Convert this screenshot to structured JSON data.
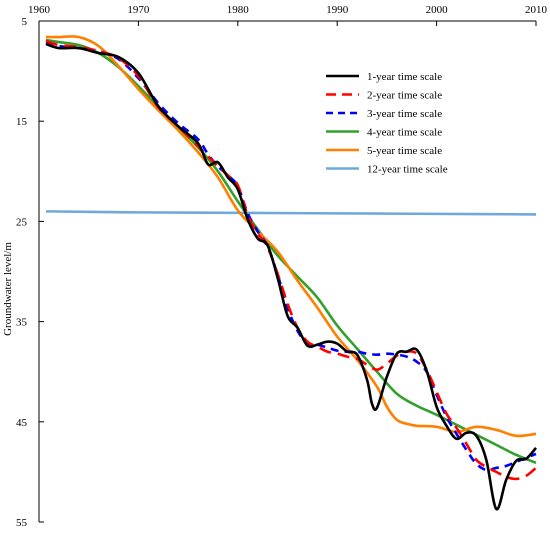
{
  "chart_data": {
    "type": "line",
    "title": "",
    "xlabel": "",
    "ylabel": "Groundwater level/m",
    "xlim": [
      1960,
      2010
    ],
    "ylim": [
      5,
      55
    ],
    "y_inverted": true,
    "x_ticks": [
      1960,
      1970,
      1980,
      1990,
      2000,
      2010
    ],
    "y_ticks": [
      5,
      15,
      25,
      35,
      45,
      55
    ],
    "x_axis_position": "top",
    "grid": false,
    "legend_position": "top-right",
    "series": [
      {
        "name": "1-year time scale",
        "color": "#000000",
        "dash": "solid",
        "x": [
          1960.7,
          1962,
          1964,
          1966,
          1968,
          1970,
          1972,
          1974,
          1976,
          1977,
          1978,
          1979,
          1980,
          1981,
          1982,
          1983,
          1984,
          1985,
          1986,
          1987,
          1988,
          1989,
          1990,
          1991,
          1992,
          1993,
          1993.5,
          1994,
          1995,
          1996,
          1997,
          1998,
          1999,
          2000,
          2001,
          2002,
          2003,
          2004,
          2005,
          2006,
          2007,
          2008,
          2009,
          2010
        ],
        "y": [
          7.3,
          7.7,
          7.7,
          8.2,
          8.6,
          10.2,
          13.5,
          15.5,
          17.2,
          19.3,
          19.1,
          20.6,
          21.8,
          24.8,
          26.7,
          27.4,
          30.6,
          34.4,
          35.6,
          37.4,
          37.3,
          37.0,
          37.2,
          38.0,
          38.3,
          40.8,
          43.2,
          43.6,
          40.5,
          38.2,
          38.0,
          37.8,
          39.9,
          43.5,
          45.4,
          46.7,
          46.1,
          46.4,
          48.8,
          53.7,
          50.8,
          48.9,
          48.7,
          47.6
        ]
      },
      {
        "name": "2-year time scale",
        "color": "#ff0000",
        "dash": "long-dash",
        "x": [
          1960.7,
          1962,
          1964,
          1966,
          1968,
          1970,
          1972,
          1974,
          1976,
          1977,
          1978,
          1979,
          1980,
          1981,
          1982,
          1983,
          1984,
          1985,
          1986,
          1987,
          1988,
          1989,
          1990,
          1991,
          1992,
          1993,
          1994,
          1995,
          1996,
          1997,
          1998,
          1999,
          2000,
          2001,
          2002,
          2003,
          2004,
          2005,
          2006,
          2007,
          2008,
          2009,
          2010
        ],
        "y": [
          7.0,
          7.4,
          7.6,
          8.0,
          8.7,
          10.5,
          13.6,
          15.5,
          17.5,
          18.5,
          19.5,
          20.4,
          21.4,
          24.4,
          26.2,
          27.6,
          30.2,
          33.2,
          35.6,
          37.0,
          37.5,
          38.0,
          38.2,
          38.5,
          38.7,
          39.3,
          39.8,
          39.2,
          38.4,
          38.0,
          38.2,
          39.8,
          42.0,
          44.2,
          45.6,
          47.2,
          48.8,
          49.5,
          50.0,
          50.5,
          50.7,
          50.4,
          49.6
        ]
      },
      {
        "name": "3-year time scale",
        "color": "#0000ff",
        "dash": "short-dash",
        "x": [
          1960.7,
          1962,
          1964,
          1966,
          1968,
          1970,
          1972,
          1974,
          1976,
          1977,
          1978,
          1979,
          1980,
          1981,
          1982,
          1983,
          1984,
          1985,
          1986,
          1987,
          1988,
          1989,
          1990,
          1991,
          1992,
          1993,
          1994,
          1995,
          1996,
          1997,
          1998,
          1999,
          2000,
          2001,
          2002,
          2003,
          2004,
          2005,
          2006,
          2007,
          2008,
          2009,
          2010
        ],
        "y": [
          7.2,
          7.5,
          7.7,
          8.0,
          8.8,
          10.7,
          13.2,
          15.2,
          16.8,
          18.3,
          19.5,
          20.4,
          21.5,
          24.2,
          26.0,
          27.5,
          30.3,
          33.6,
          35.9,
          37.2,
          37.3,
          37.6,
          37.9,
          38.0,
          38.0,
          38.2,
          38.3,
          38.2,
          38.3,
          38.5,
          39.0,
          40.0,
          42.3,
          44.5,
          46.2,
          47.8,
          49.2,
          49.8,
          49.6,
          49.4,
          49.0,
          48.6,
          48.2
        ]
      },
      {
        "name": "4-year time scale",
        "color": "#33a02c",
        "dash": "solid",
        "x": [
          1960.7,
          1962,
          1964,
          1966,
          1968,
          1970,
          1972,
          1974,
          1976,
          1978,
          1980,
          1982,
          1984,
          1986,
          1988,
          1990,
          1992,
          1994,
          1996,
          1998,
          2000,
          2002,
          2004,
          2006,
          2008,
          2010
        ],
        "y": [
          6.9,
          7.1,
          7.4,
          8.2,
          9.6,
          11.5,
          13.6,
          15.6,
          17.6,
          20.0,
          23.0,
          25.8,
          28.4,
          30.5,
          32.6,
          35.4,
          37.7,
          40.0,
          42.2,
          43.4,
          44.3,
          45.3,
          46.3,
          47.3,
          48.3,
          49.1
        ]
      },
      {
        "name": "5-year time scale",
        "color": "#ff7f00",
        "dash": "solid",
        "x": [
          1960.7,
          1962,
          1964,
          1966,
          1968,
          1970,
          1972,
          1974,
          1976,
          1978,
          1980,
          1982,
          1984,
          1986,
          1988,
          1990,
          1992,
          1994,
          1995,
          1996,
          1997,
          1998,
          2000,
          2002,
          2004,
          2006,
          2008,
          2010
        ],
        "y": [
          6.6,
          6.6,
          6.6,
          7.5,
          9.5,
          11.8,
          13.9,
          15.9,
          18.1,
          20.6,
          23.9,
          26.0,
          28.0,
          30.9,
          33.6,
          36.5,
          38.8,
          41.5,
          43.5,
          44.8,
          45.2,
          45.4,
          45.5,
          46.0,
          45.5,
          45.8,
          46.4,
          46.2
        ]
      },
      {
        "name": "12-year time scale",
        "color": "#6fa8dc",
        "dash": "solid",
        "x": [
          1960.7,
          1970,
          1980,
          1990,
          2000,
          2010
        ],
        "y": [
          24.0,
          24.1,
          24.15,
          24.2,
          24.25,
          24.3
        ]
      }
    ]
  }
}
